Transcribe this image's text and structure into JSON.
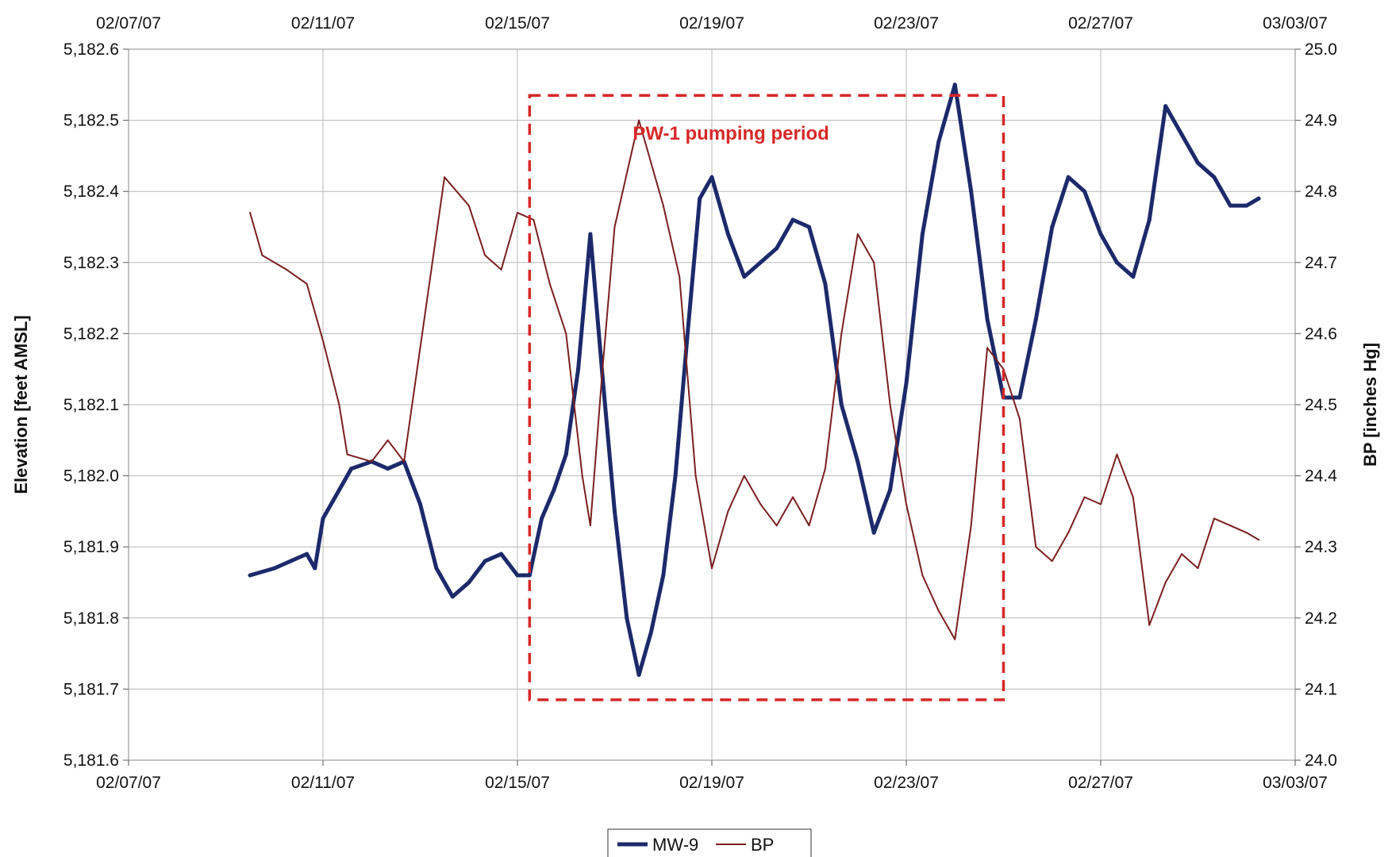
{
  "chart_data": {
    "type": "line",
    "x_axis": {
      "type": "date",
      "range": [
        "2007-02-07",
        "2007-03-03"
      ],
      "tick_labels": [
        "02/07/07",
        "02/11/07",
        "02/15/07",
        "02/19/07",
        "02/23/07",
        "02/27/07",
        "03/03/07"
      ],
      "tick_dates": [
        "2007-02-07",
        "2007-02-11",
        "2007-02-15",
        "2007-02-19",
        "2007-02-23",
        "2007-02-27",
        "2007-03-03"
      ],
      "shown_top_and_bottom": true
    },
    "y_left": {
      "label": "Elevation [feet AMSL]",
      "range": [
        5181.6,
        5182.6
      ],
      "tick_values": [
        5181.6,
        5181.7,
        5181.8,
        5181.9,
        5182.0,
        5182.1,
        5182.2,
        5182.3,
        5182.4,
        5182.5,
        5182.6
      ],
      "tick_labels": [
        "5,181.6",
        "5,181.7",
        "5,181.8",
        "5,181.9",
        "5,182.0",
        "5,182.1",
        "5,182.2",
        "5,182.3",
        "5,182.4",
        "5,182.5",
        "5,182.6"
      ]
    },
    "y_right": {
      "label": "BP [inches Hg]",
      "range": [
        24.0,
        25.0
      ],
      "tick_values": [
        24.0,
        24.1,
        24.2,
        24.3,
        24.4,
        24.5,
        24.6,
        24.7,
        24.8,
        24.9,
        25.0
      ],
      "tick_labels": [
        "24.0",
        "24.1",
        "24.2",
        "24.3",
        "24.4",
        "24.5",
        "24.6",
        "24.7",
        "24.8",
        "24.9",
        "25.0"
      ]
    },
    "grid": true,
    "legend_position": "bottom-center",
    "series": [
      {
        "name": "MW-9",
        "axis": "left",
        "color": "#1c2a6b",
        "points": [
          [
            "2007-02-09 12:00",
            5181.86
          ],
          [
            "2007-02-10 00:00",
            5181.87
          ],
          [
            "2007-02-10 08:00",
            5181.88
          ],
          [
            "2007-02-10 16:00",
            5181.89
          ],
          [
            "2007-02-10 20:00",
            5181.87
          ],
          [
            "2007-02-11 00:00",
            5181.94
          ],
          [
            "2007-02-11 08:00",
            5181.98
          ],
          [
            "2007-02-11 14:00",
            5182.01
          ],
          [
            "2007-02-12 00:00",
            5182.02
          ],
          [
            "2007-02-12 08:00",
            5182.01
          ],
          [
            "2007-02-12 16:00",
            5182.02
          ],
          [
            "2007-02-13 00:00",
            5181.96
          ],
          [
            "2007-02-13 08:00",
            5181.87
          ],
          [
            "2007-02-13 16:00",
            5181.83
          ],
          [
            "2007-02-14 00:00",
            5181.85
          ],
          [
            "2007-02-14 08:00",
            5181.88
          ],
          [
            "2007-02-14 16:00",
            5181.89
          ],
          [
            "2007-02-15 00:00",
            5181.86
          ],
          [
            "2007-02-15 06:00",
            5181.86
          ],
          [
            "2007-02-15 12:00",
            5181.94
          ],
          [
            "2007-02-15 18:00",
            5181.98
          ],
          [
            "2007-02-16 00:00",
            5182.03
          ],
          [
            "2007-02-16 06:00",
            5182.15
          ],
          [
            "2007-02-16 12:00",
            5182.34
          ],
          [
            "2007-02-16 18:00",
            5182.14
          ],
          [
            "2007-02-17 00:00",
            5181.95
          ],
          [
            "2007-02-17 06:00",
            5181.8
          ],
          [
            "2007-02-17 12:00",
            5181.72
          ],
          [
            "2007-02-17 18:00",
            5181.78
          ],
          [
            "2007-02-18 00:00",
            5181.86
          ],
          [
            "2007-02-18 06:00",
            5182.0
          ],
          [
            "2007-02-18 12:00",
            5182.2
          ],
          [
            "2007-02-18 18:00",
            5182.39
          ],
          [
            "2007-02-19 00:00",
            5182.42
          ],
          [
            "2007-02-19 08:00",
            5182.34
          ],
          [
            "2007-02-19 16:00",
            5182.28
          ],
          [
            "2007-02-20 00:00",
            5182.3
          ],
          [
            "2007-02-20 08:00",
            5182.32
          ],
          [
            "2007-02-20 16:00",
            5182.36
          ],
          [
            "2007-02-21 00:00",
            5182.35
          ],
          [
            "2007-02-21 08:00",
            5182.27
          ],
          [
            "2007-02-21 16:00",
            5182.1
          ],
          [
            "2007-02-22 00:00",
            5182.02
          ],
          [
            "2007-02-22 08:00",
            5181.92
          ],
          [
            "2007-02-22 16:00",
            5181.98
          ],
          [
            "2007-02-23 00:00",
            5182.13
          ],
          [
            "2007-02-23 08:00",
            5182.34
          ],
          [
            "2007-02-23 16:00",
            5182.47
          ],
          [
            "2007-02-24 00:00",
            5182.55
          ],
          [
            "2007-02-24 08:00",
            5182.4
          ],
          [
            "2007-02-24 16:00",
            5182.22
          ],
          [
            "2007-02-25 00:00",
            5182.11
          ],
          [
            "2007-02-25 08:00",
            5182.11
          ],
          [
            "2007-02-25 16:00",
            5182.22
          ],
          [
            "2007-02-26 00:00",
            5182.35
          ],
          [
            "2007-02-26 08:00",
            5182.42
          ],
          [
            "2007-02-26 16:00",
            5182.4
          ],
          [
            "2007-02-27 00:00",
            5182.34
          ],
          [
            "2007-02-27 08:00",
            5182.3
          ],
          [
            "2007-02-27 16:00",
            5182.28
          ],
          [
            "2007-02-28 00:00",
            5182.36
          ],
          [
            "2007-02-28 08:00",
            5182.52
          ],
          [
            "2007-02-28 16:00",
            5182.48
          ],
          [
            "2007-03-01 00:00",
            5182.44
          ],
          [
            "2007-03-01 08:00",
            5182.42
          ],
          [
            "2007-03-01 16:00",
            5182.38
          ],
          [
            "2007-03-02 00:00",
            5182.38
          ],
          [
            "2007-03-02 06:00",
            5182.39
          ]
        ]
      },
      {
        "name": "BP",
        "axis": "right",
        "color": "#7a1f1f",
        "points": [
          [
            "2007-02-09 12:00",
            24.77
          ],
          [
            "2007-02-09 18:00",
            24.71
          ],
          [
            "2007-02-10 06:00",
            24.69
          ],
          [
            "2007-02-10 16:00",
            24.67
          ],
          [
            "2007-02-11 00:00",
            24.59
          ],
          [
            "2007-02-11 08:00",
            24.5
          ],
          [
            "2007-02-11 12:00",
            24.43
          ],
          [
            "2007-02-12 00:00",
            24.42
          ],
          [
            "2007-02-12 08:00",
            24.45
          ],
          [
            "2007-02-12 16:00",
            24.42
          ],
          [
            "2007-02-13 00:00",
            24.58
          ],
          [
            "2007-02-13 12:00",
            24.82
          ],
          [
            "2007-02-14 00:00",
            24.78
          ],
          [
            "2007-02-14 08:00",
            24.71
          ],
          [
            "2007-02-14 16:00",
            24.69
          ],
          [
            "2007-02-15 00:00",
            24.77
          ],
          [
            "2007-02-15 08:00",
            24.76
          ],
          [
            "2007-02-15 16:00",
            24.67
          ],
          [
            "2007-02-16 00:00",
            24.6
          ],
          [
            "2007-02-16 08:00",
            24.4
          ],
          [
            "2007-02-16 12:00",
            24.33
          ],
          [
            "2007-02-16 18:00",
            24.55
          ],
          [
            "2007-02-17 00:00",
            24.75
          ],
          [
            "2007-02-17 12:00",
            24.9
          ],
          [
            "2007-02-18 00:00",
            24.78
          ],
          [
            "2007-02-18 08:00",
            24.68
          ],
          [
            "2007-02-18 16:00",
            24.4
          ],
          [
            "2007-02-19 00:00",
            24.27
          ],
          [
            "2007-02-19 08:00",
            24.35
          ],
          [
            "2007-02-19 16:00",
            24.4
          ],
          [
            "2007-02-20 00:00",
            24.36
          ],
          [
            "2007-02-20 08:00",
            24.33
          ],
          [
            "2007-02-20 16:00",
            24.37
          ],
          [
            "2007-02-21 00:00",
            24.33
          ],
          [
            "2007-02-21 08:00",
            24.41
          ],
          [
            "2007-02-21 16:00",
            24.6
          ],
          [
            "2007-02-22 00:00",
            24.74
          ],
          [
            "2007-02-22 08:00",
            24.7
          ],
          [
            "2007-02-22 16:00",
            24.5
          ],
          [
            "2007-02-23 00:00",
            24.36
          ],
          [
            "2007-02-23 08:00",
            24.26
          ],
          [
            "2007-02-23 16:00",
            24.21
          ],
          [
            "2007-02-24 00:00",
            24.17
          ],
          [
            "2007-02-24 08:00",
            24.33
          ],
          [
            "2007-02-24 16:00",
            24.58
          ],
          [
            "2007-02-25 00:00",
            24.55
          ],
          [
            "2007-02-25 08:00",
            24.48
          ],
          [
            "2007-02-25 16:00",
            24.3
          ],
          [
            "2007-02-26 00:00",
            24.28
          ],
          [
            "2007-02-26 08:00",
            24.32
          ],
          [
            "2007-02-26 16:00",
            24.37
          ],
          [
            "2007-02-27 00:00",
            24.36
          ],
          [
            "2007-02-27 08:00",
            24.43
          ],
          [
            "2007-02-27 16:00",
            24.37
          ],
          [
            "2007-02-28 00:00",
            24.19
          ],
          [
            "2007-02-28 08:00",
            24.25
          ],
          [
            "2007-02-28 16:00",
            24.29
          ],
          [
            "2007-03-01 00:00",
            24.27
          ],
          [
            "2007-03-01 08:00",
            24.34
          ],
          [
            "2007-03-01 16:00",
            24.33
          ],
          [
            "2007-03-02 00:00",
            24.32
          ],
          [
            "2007-03-02 06:00",
            24.31
          ]
        ]
      }
    ],
    "annotations": [
      {
        "text": "PW-1 pumping period",
        "color": "#d62828",
        "style": "dashed-rectangle",
        "x_range": [
          "2007-02-15 06:00",
          "2007-02-25 00:00"
        ],
        "y_range_left": [
          5181.685,
          5182.535
        ]
      }
    ]
  }
}
